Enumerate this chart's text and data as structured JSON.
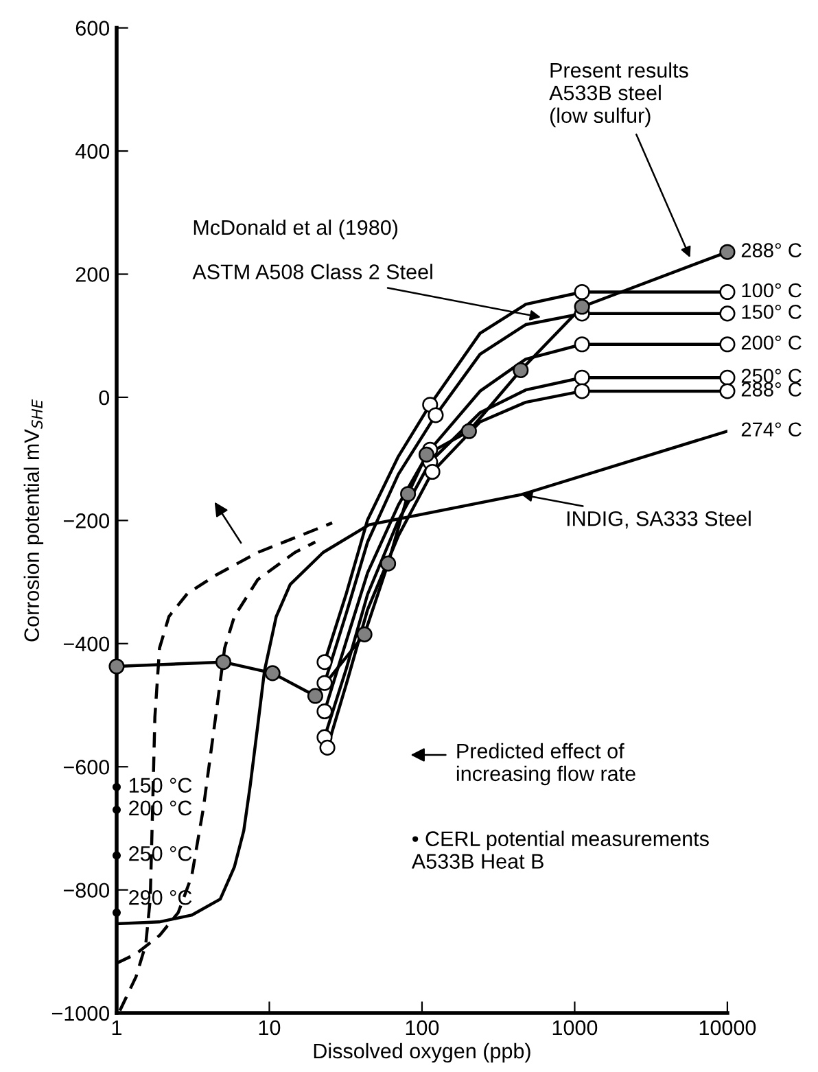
{
  "chart_data": {
    "type": "line",
    "xlabel": "Dissolved oxygen (ppb)",
    "ylabel": "Corrosion potential mV$_{SHE}$",
    "log": "x",
    "xlim": [
      1,
      10000
    ],
    "xticks": [
      1,
      10,
      100,
      1000,
      10000
    ],
    "ylim": [
      -1000,
      600
    ],
    "yticks": [
      {
        "value": -1000,
        "label": "−1000"
      },
      {
        "value": -800,
        "label": "−800"
      },
      {
        "value": -600,
        "label": "−600"
      },
      {
        "value": -400,
        "label": "−400"
      },
      {
        "value": -200,
        "label": "−200"
      },
      0,
      200,
      400,
      600
    ],
    "series": [
      {
        "name": "288° C",
        "color": "#000000",
        "x": [
          1,
          5,
          10.5,
          20,
          42,
          60,
          81,
          107,
          203,
          443,
          1117,
          10000
        ],
        "values": [
          -437,
          -430,
          -448,
          -485,
          -385,
          -270,
          -157,
          -93,
          -55,
          44,
          147,
          236
        ]
      },
      {
        "type": "scatter",
        "color": "#808080",
        "marker": "circle",
        "x": [
          1,
          5,
          10.5,
          20,
          42,
          60,
          81,
          107,
          203,
          443,
          1117,
          10000
        ],
        "values": [
          -437,
          -430,
          -448,
          -485,
          -385,
          -270,
          -157,
          -93,
          -55,
          44,
          147,
          236
        ]
      },
      {
        "name": "100° C",
        "color": "#000000",
        "x": [
          23,
          32,
          44,
          70,
          113,
          240,
          478,
          1117,
          10000
        ],
        "values": [
          -430,
          -318,
          -199,
          -96,
          -12,
          104,
          151,
          171,
          171
        ]
      },
      {
        "name": "150° C",
        "color": "#000000",
        "x": [
          23,
          32,
          44,
          70,
          123,
          240,
          478,
          1117,
          10000
        ],
        "values": [
          -464,
          -350,
          -235,
          -125,
          -29,
          70,
          118,
          136,
          136
        ]
      },
      {
        "name": "200° C",
        "color": "#000000",
        "x": [
          23,
          32,
          44,
          70,
          113,
          240,
          478,
          1117,
          10000
        ],
        "values": [
          -510,
          -395,
          -285,
          -175,
          -85,
          10,
          62,
          86,
          86
        ]
      },
      {
        "name": "250° C",
        "color": "#000000",
        "x": [
          23,
          32,
          44,
          70,
          113,
          240,
          478,
          1117,
          10000
        ],
        "values": [
          -552,
          -440,
          -320,
          -200,
          -105,
          -25,
          12,
          32,
          32
        ]
      },
      {
        "name": "288° C",
        "color": "#000000",
        "x": [
          24,
          32,
          44,
          70,
          117,
          240,
          478,
          1117,
          10000
        ],
        "values": [
          -569,
          -465,
          -345,
          -225,
          -121,
          -40,
          -8,
          10,
          10
        ]
      },
      {
        "type": "scatter",
        "color": "#ffffff",
        "marker": "circle",
        "x": [
          23,
          113,
          1117,
          10000,
          23,
          123,
          1117,
          10000,
          23,
          113,
          1117,
          10000,
          23,
          113,
          1117,
          10000,
          24,
          117,
          1117,
          10000
        ],
        "values": [
          -430,
          -12,
          171,
          171,
          -464,
          -29,
          136,
          136,
          -510,
          -85,
          86,
          86,
          -552,
          -105,
          32,
          32,
          -569,
          -121,
          10,
          10
        ]
      },
      {
        "name": "274° C",
        "color": "#000000",
        "x": [
          1,
          1.9,
          3.1,
          4.77,
          5.9,
          6.8,
          7.5,
          8.4,
          9.3,
          11.1,
          13.7,
          22.5,
          45,
          448,
          10000
        ],
        "values": [
          -855,
          -852,
          -841,
          -815,
          -763,
          -704,
          -630,
          -533,
          -444,
          -356,
          -304,
          -252,
          -207,
          -158,
          -55
        ]
      },
      {
        "color": "#000000",
        "line_style": "dashed",
        "x": [
          1.05,
          1.34,
          1.55,
          1.66,
          1.72,
          1.78,
          1.91,
          2.2,
          2.9,
          4.45,
          8.4,
          25.8
        ],
        "values": [
          -996,
          -941,
          -889,
          -815,
          -667,
          -519,
          -407,
          -356,
          -319,
          -289,
          -252,
          -204
        ]
      },
      {
        "color": "#000000",
        "line_style": "dashed",
        "x": [
          1,
          1.34,
          1.91,
          2.53,
          3.1,
          3.7,
          4.45,
          5.1,
          5.9,
          8.4,
          14.7,
          20
        ],
        "values": [
          -919,
          -904,
          -874,
          -837,
          -778,
          -667,
          -519,
          -407,
          -356,
          -296,
          -252,
          -235
        ]
      },
      {
        "type": "scatter",
        "color": "#000000",
        "marker": "circle",
        "x": [
          1,
          1,
          1,
          1
        ],
        "values": [
          -633,
          -670,
          -744,
          -837
        ]
      }
    ],
    "annotations": [
      {
        "text": "Present results\nA533B steel\n(low sulfur)",
        "x": 5700,
        "y": 227
      },
      "McDonald et al (1980)",
      {
        "text": "ASTM A508 Class 2 Steel",
        "x": 600,
        "y": 130
      },
      {
        "text": "INDIG, SA333 Steel",
        "x": 448,
        "y": -158
      },
      "Predicted effect of\nincreasing flow rate",
      "• CERL potential measurements\nA533B Heat B",
      {
        "text": "150 °C",
        "x": 1,
        "y": -633
      },
      {
        "text": "200 °C",
        "x": 1,
        "y": -670
      },
      {
        "text": "250 °C",
        "x": 1,
        "y": -744
      },
      {
        "text": "290 °C",
        "x": 1,
        "y": -837
      }
    ]
  }
}
